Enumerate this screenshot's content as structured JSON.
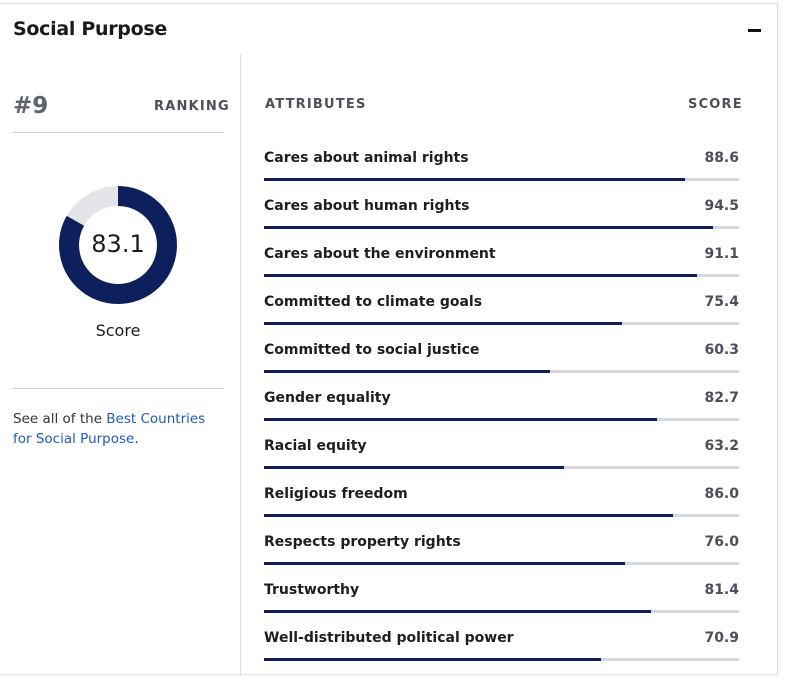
{
  "section": {
    "title": "Social Purpose",
    "collapse_icon": "minus-icon"
  },
  "ranking": {
    "rank": "#9",
    "label": "RANKING"
  },
  "score": {
    "value": "83.1",
    "value_fraction": 0.831,
    "caption": "Score",
    "colors": {
      "fill": "#0d1f5c",
      "track": "#e3e5ea"
    }
  },
  "see_all": {
    "prefix": "See all of the ",
    "link_text": "Best Countries for Social Purpose",
    "suffix": "."
  },
  "attributes": {
    "header_left": "ATTRIBUTES",
    "header_right": "SCORE",
    "bar_color": "#0d1f5c",
    "track_color": "#d5d8de",
    "items": [
      {
        "name": "Cares about animal rights",
        "score": "88.6",
        "value": 88.6
      },
      {
        "name": "Cares about human rights",
        "score": "94.5",
        "value": 94.5
      },
      {
        "name": "Cares about the environment",
        "score": "91.1",
        "value": 91.1
      },
      {
        "name": "Committed to climate goals",
        "score": "75.4",
        "value": 75.4
      },
      {
        "name": "Committed to social justice",
        "score": "60.3",
        "value": 60.3
      },
      {
        "name": "Gender equality",
        "score": "82.7",
        "value": 82.7
      },
      {
        "name": "Racial equity",
        "score": "63.2",
        "value": 63.2
      },
      {
        "name": "Religious freedom",
        "score": "86.0",
        "value": 86.0
      },
      {
        "name": "Respects property rights",
        "score": "76.0",
        "value": 76.0
      },
      {
        "name": "Trustworthy",
        "score": "81.4",
        "value": 81.4
      },
      {
        "name": "Well-distributed political power",
        "score": "70.9",
        "value": 70.9
      }
    ]
  }
}
